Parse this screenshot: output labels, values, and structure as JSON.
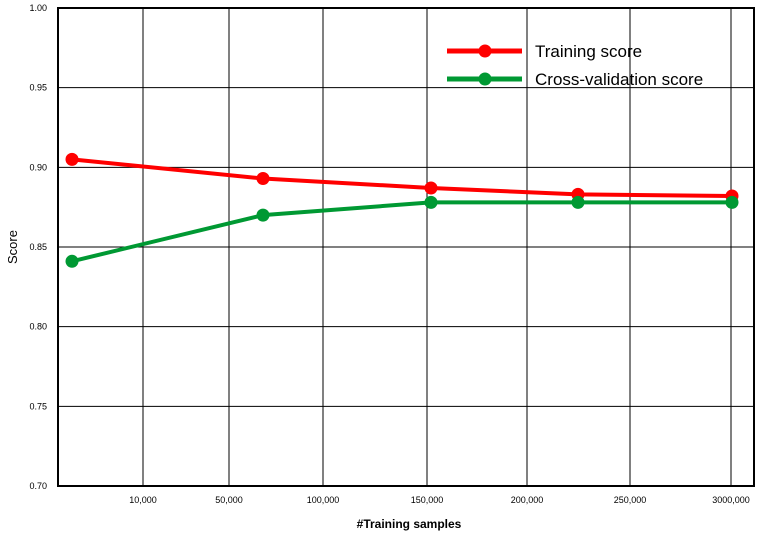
{
  "chart_data": {
    "type": "line",
    "title": "",
    "xlabel": "#Training samples",
    "ylabel": "Score",
    "ylim": [
      0.7,
      1.0
    ],
    "yticks": [
      "0.70",
      "0.75",
      "0.80",
      "0.85",
      "0.90",
      "0.95",
      "1.00"
    ],
    "x_tick_labels": [
      "10,000",
      "50,000",
      "100,000",
      "150,000",
      "200,000",
      "250,000",
      "3000,000"
    ],
    "grid": true,
    "legend_position": "top-right",
    "series": [
      {
        "name": "Training score",
        "color": "#ff0000",
        "values": [
          0.905,
          0.893,
          0.887,
          0.883,
          0.882
        ]
      },
      {
        "name": "Cross-validation score",
        "color": "#009933",
        "values": [
          0.841,
          0.87,
          0.878,
          0.878,
          0.878
        ]
      }
    ]
  }
}
